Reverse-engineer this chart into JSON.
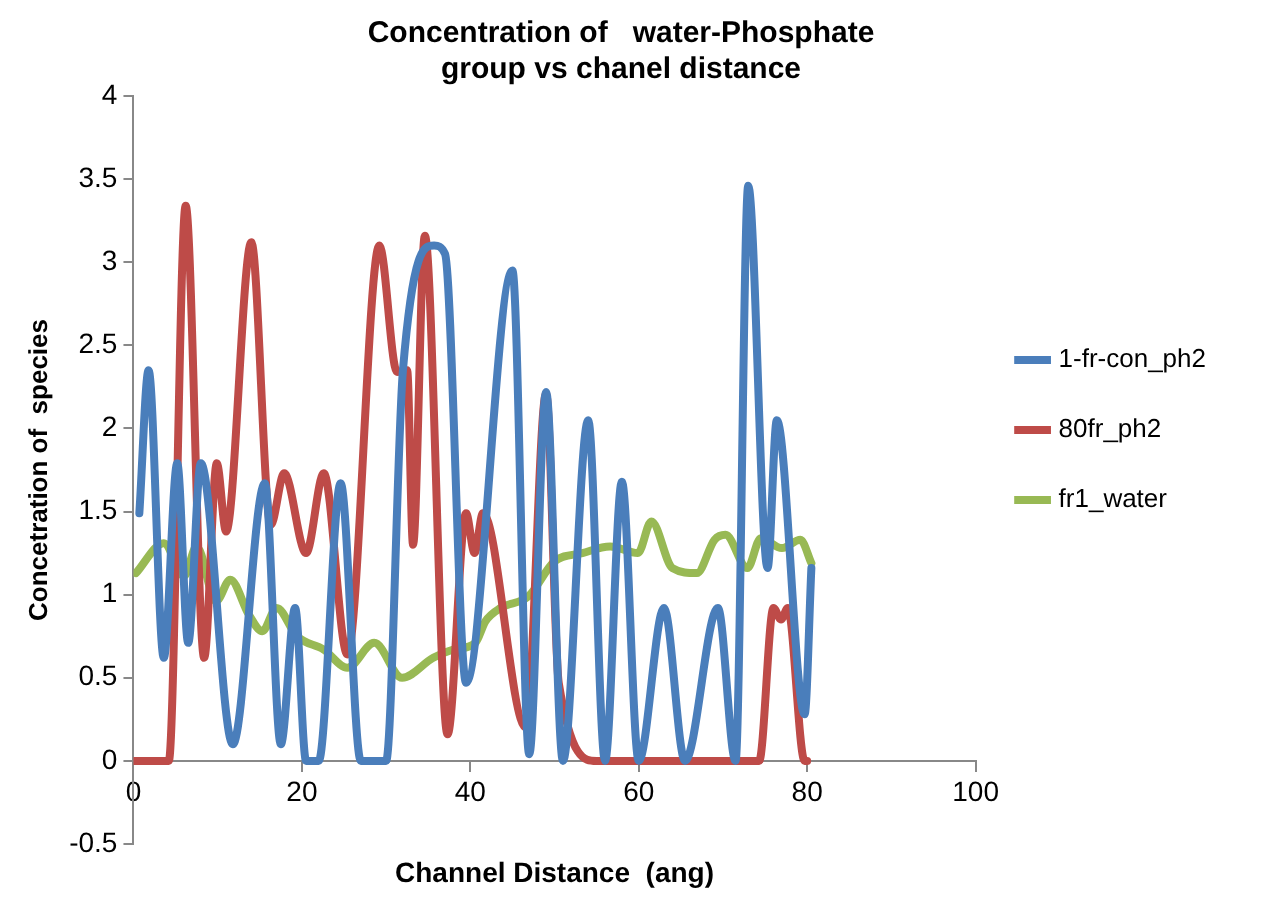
{
  "chart_data": {
    "type": "line",
    "title": "Concentration of   water-Phosphate group vs chanel distance",
    "xlabel": "Channel Distance  (ang)",
    "ylabel": "Concetration of  species",
    "xlim": [
      0,
      100
    ],
    "xticks": [
      0,
      20,
      40,
      60,
      80,
      100
    ],
    "ylim": [
      -0.5,
      4
    ],
    "yticks": [
      -0.5,
      0,
      0.5,
      1,
      1.5,
      2,
      2.5,
      3,
      3.5,
      4
    ],
    "grid": false,
    "legend": "right",
    "marker": "none",
    "line_style": "solid",
    "series": [
      {
        "name": "1-fr-con_ph2",
        "color": "#4a7ebb",
        "x": [
          0.7,
          1.8,
          3.6,
          5.2,
          6.5,
          8,
          11.8,
          15.6,
          17.5,
          19.2,
          20.5,
          22,
          24.6,
          27,
          30,
          32,
          35.7,
          37,
          39.5,
          45,
          47,
          49,
          51,
          54,
          56,
          58,
          60,
          63,
          65.5,
          69.4,
          71.5,
          73,
          75.3,
          76.4,
          79.7,
          80.5
        ],
        "values": [
          1.49,
          2.35,
          0.62,
          1.79,
          0.71,
          1.79,
          0.1,
          1.67,
          0.1,
          0.92,
          0,
          0,
          1.67,
          0,
          0,
          2.35,
          3.1,
          3.05,
          0.47,
          2.95,
          0.04,
          2.22,
          0,
          2.05,
          0,
          1.68,
          0,
          0.92,
          0,
          0.92,
          0,
          3.46,
          1.16,
          2.05,
          0.28,
          1.16
        ]
      },
      {
        "name": "80fr_ph2",
        "color": "#be4b48",
        "x": [
          0,
          4.2,
          6.2,
          8.4,
          9.9,
          11,
          14,
          16.3,
          17.9,
          20.5,
          22.6,
          25.4,
          29.2,
          31.3,
          32.5,
          33.2,
          34.6,
          37.3,
          39.5,
          40.5,
          41.5,
          46.6,
          49,
          50.5,
          55,
          74.3,
          76,
          76.9,
          77.7,
          79.7,
          80
        ],
        "values": [
          0,
          0,
          3.34,
          0.62,
          1.79,
          1.38,
          3.12,
          1.42,
          1.73,
          1.25,
          1.73,
          0.64,
          3.1,
          2.34,
          2.35,
          1.3,
          3.16,
          0.16,
          1.49,
          1.25,
          1.49,
          0.2,
          2.21,
          0.47,
          0,
          0,
          0.92,
          0.85,
          0.92,
          0,
          0
        ]
      },
      {
        "name": "fr1_water",
        "color": "#98b954",
        "x": [
          0.3,
          3.6,
          6,
          7.5,
          9.8,
          11.5,
          13.7,
          15.3,
          17,
          19.4,
          22.6,
          25.4,
          28.6,
          31.9,
          35.6,
          38,
          40.6,
          41.8,
          43.6,
          46.9,
          50,
          53.3,
          56.6,
          59.9,
          61.5,
          64,
          66.9,
          69,
          70.3,
          72.9,
          74.5,
          77,
          79.2,
          80.5
        ],
        "values": [
          1.13,
          1.31,
          1.11,
          1.29,
          0.96,
          1.09,
          0.88,
          0.78,
          0.92,
          0.75,
          0.67,
          0.56,
          0.71,
          0.5,
          0.62,
          0.67,
          0.71,
          0.84,
          0.92,
          0.99,
          1.2,
          1.25,
          1.29,
          1.25,
          1.44,
          1.16,
          1.13,
          1.33,
          1.36,
          1.16,
          1.34,
          1.28,
          1.33,
          1.19
        ]
      }
    ]
  }
}
